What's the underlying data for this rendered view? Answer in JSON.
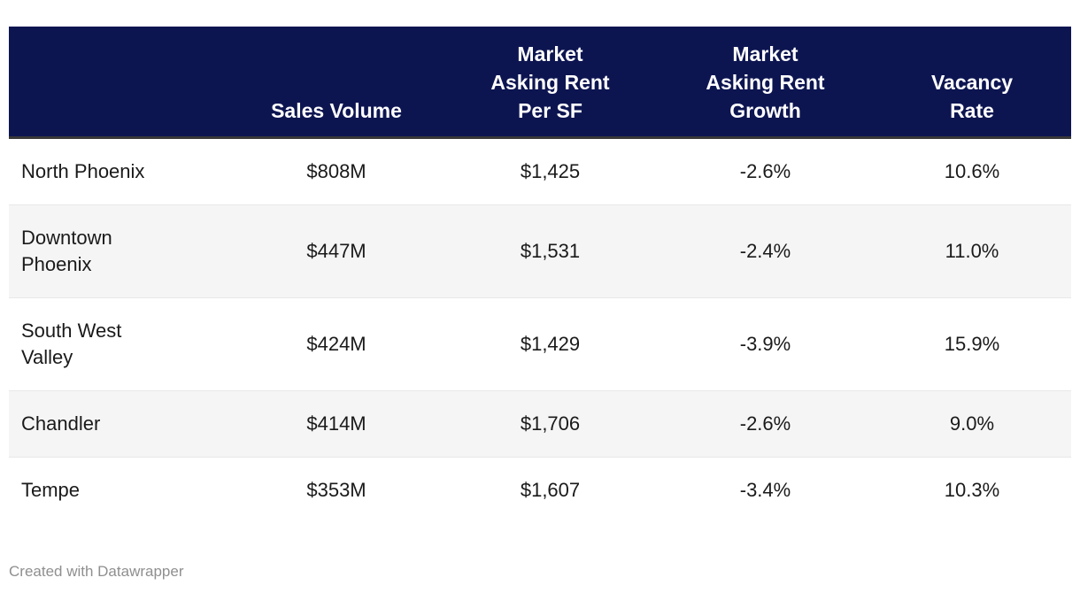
{
  "colors": {
    "header_bg": "#0d1551",
    "header_text": "#ffffff",
    "header_divider": "#383838",
    "row_alt_bg": "#f5f5f5",
    "row_border": "#e8e8e8",
    "body_text": "#1a1a1a",
    "footer_text": "#8f8f8f",
    "page_bg": "#ffffff"
  },
  "table": {
    "columns": [
      {
        "label": ""
      },
      {
        "label": "Sales Volume"
      },
      {
        "label": "Market\nAsking Rent\nPer SF"
      },
      {
        "label": "Market\nAsking Rent\nGrowth"
      },
      {
        "label": "Vacancy\nRate"
      }
    ],
    "rows": [
      {
        "market": "North Phoenix",
        "sales_volume": "$808M",
        "rent_per_sf": "$1,425",
        "rent_growth": "-2.6%",
        "vacancy_rate": "10.6%"
      },
      {
        "market": "Downtown\nPhoenix",
        "sales_volume": "$447M",
        "rent_per_sf": "$1,531",
        "rent_growth": "-2.4%",
        "vacancy_rate": "11.0%"
      },
      {
        "market": "South West\nValley",
        "sales_volume": "$424M",
        "rent_per_sf": "$1,429",
        "rent_growth": "-3.9%",
        "vacancy_rate": "15.9%"
      },
      {
        "market": "Chandler",
        "sales_volume": "$414M",
        "rent_per_sf": "$1,706",
        "rent_growth": "-2.6%",
        "vacancy_rate": "9.0%"
      },
      {
        "market": "Tempe",
        "sales_volume": "$353M",
        "rent_per_sf": "$1,607",
        "rent_growth": "-3.4%",
        "vacancy_rate": "10.3%"
      }
    ]
  },
  "chart_data": {
    "type": "table",
    "columns": [
      "",
      "Sales Volume",
      "Market Asking Rent Per SF",
      "Market Asking Rent Growth",
      "Vacancy Rate"
    ],
    "rows": [
      [
        "North Phoenix",
        "$808M",
        "$1,425",
        "-2.6%",
        "10.6%"
      ],
      [
        "Downtown Phoenix",
        "$447M",
        "$1,531",
        "-2.4%",
        "11.0%"
      ],
      [
        "South West Valley",
        "$424M",
        "$1,429",
        "-3.9%",
        "15.9%"
      ],
      [
        "Chandler",
        "$414M",
        "$1,706",
        "-2.6%",
        "9.0%"
      ],
      [
        "Tempe",
        "$353M",
        "$1,607",
        "-3.4%",
        "10.3%"
      ]
    ],
    "numeric": {
      "markets": [
        "North Phoenix",
        "Downtown Phoenix",
        "South West Valley",
        "Chandler",
        "Tempe"
      ],
      "sales_volume_millions_usd": [
        808,
        447,
        424,
        414,
        353
      ],
      "market_asking_rent_per_sf_usd": [
        1425,
        1531,
        1429,
        1706,
        1607
      ],
      "market_asking_rent_growth_pct": [
        -2.6,
        -2.4,
        -3.9,
        -2.6,
        -3.4
      ],
      "vacancy_rate_pct": [
        10.6,
        11.0,
        15.9,
        9.0,
        10.3
      ]
    }
  },
  "footer": {
    "attribution": "Created with Datawrapper"
  }
}
